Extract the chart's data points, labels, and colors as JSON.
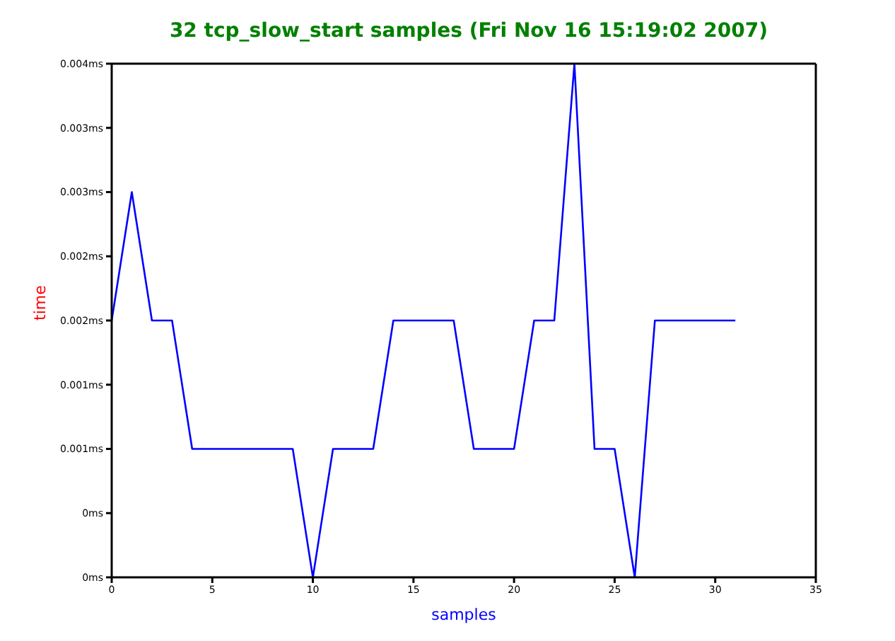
{
  "chart_data": {
    "type": "line",
    "title": "32 tcp_slow_start samples (Fri Nov 16 15:19:02 2007)",
    "xlabel": "samples",
    "ylabel": "time",
    "x": [
      0,
      1,
      2,
      3,
      4,
      5,
      6,
      7,
      8,
      9,
      10,
      11,
      12,
      13,
      14,
      15,
      16,
      17,
      18,
      19,
      20,
      21,
      22,
      23,
      24,
      25,
      26,
      27,
      28,
      29,
      30,
      31
    ],
    "series": [
      {
        "color": "#0000ff",
        "values": [
          0.002,
          0.003,
          0.002,
          0.002,
          0.001,
          0.001,
          0.001,
          0.001,
          0.001,
          0.001,
          0,
          0.001,
          0.001,
          0.001,
          0.002,
          0.002,
          0.002,
          0.002,
          0.001,
          0.001,
          0.001,
          0.002,
          0.002,
          0.004,
          0.001,
          0.001,
          0,
          0.002,
          0.002,
          0.002,
          0.002,
          0.002
        ]
      }
    ],
    "xlim": [
      0,
      35
    ],
    "xticks": [
      0,
      5,
      10,
      15,
      20,
      25,
      30,
      35
    ],
    "ylim": [
      0,
      0.004
    ],
    "yticks": [
      {
        "value": 0,
        "label": "0ms"
      },
      {
        "value": 0.0005,
        "label": "0ms"
      },
      {
        "value": 0.001,
        "label": "0.001ms"
      },
      {
        "value": 0.0015,
        "label": "0.001ms"
      },
      {
        "value": 0.002,
        "label": "0.002ms"
      },
      {
        "value": 0.0025,
        "label": "0.002ms"
      },
      {
        "value": 0.003,
        "label": "0.003ms"
      },
      {
        "value": 0.0035,
        "label": "0.003ms"
      },
      {
        "value": 0.004,
        "label": "0.004ms"
      }
    ],
    "grid": false,
    "legend": false,
    "marker": "none",
    "line_style": "solid"
  }
}
